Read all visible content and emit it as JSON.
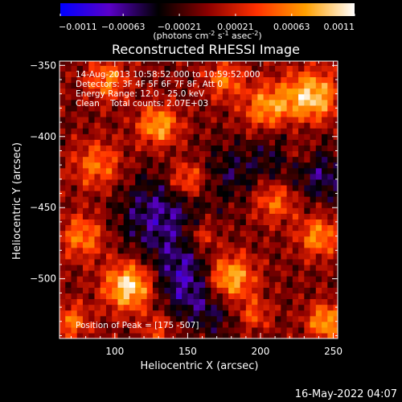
{
  "chart_data": {
    "type": "heatmap",
    "title": "Reconstructed RHESSI Image",
    "xlabel": "Heliocentric X (arcsec)",
    "ylabel": "Heliocentric Y (arcsec)",
    "xlim": [
      62,
      253
    ],
    "ylim": [
      -542,
      -347
    ],
    "xticks": [
      100,
      150,
      200,
      250
    ],
    "yticks": [
      -350,
      -400,
      -450,
      -500
    ],
    "colorbar": {
      "label_main": "(photons cm",
      "label_sup1": "-2",
      "label_mid1": " s",
      "label_sup2": "-1",
      "label_mid2": " asec",
      "label_sup3": "-2",
      "label_end": ")",
      "range": [
        -0.0011,
        0.0011
      ],
      "ticks": [
        {
          "value": -0.0011,
          "label": "-0.0011"
        },
        {
          "value": -0.00063,
          "label": "-0.00063"
        },
        {
          "value": -0.00021,
          "label": "-0.00021"
        },
        {
          "value": 0.00021,
          "label": "0.00021"
        },
        {
          "value": 0.00063,
          "label": "0.00063"
        },
        {
          "value": 0.0011,
          "label": "0.0011"
        }
      ],
      "colors": [
        "#0000ff",
        "#5a00c8",
        "#000000",
        "#8b0000",
        "#ff3000",
        "#ffa000",
        "#ffffff"
      ]
    },
    "annotations": [
      "14-Aug-2013 10:58:52.000 to 10:59:52.000",
      "Detectors: 3F 4F 5F 6F 7F 8F, Att 0",
      "Energy Range: 12.0 - 25.0 keV",
      "Clean    Total counts: 2.07E+03"
    ],
    "peak_label": "Position of Peak = [175 -507]",
    "peak": [
      175,
      -507
    ],
    "grid": false
  },
  "footer": {
    "date": "16-May-2022 04:07"
  }
}
